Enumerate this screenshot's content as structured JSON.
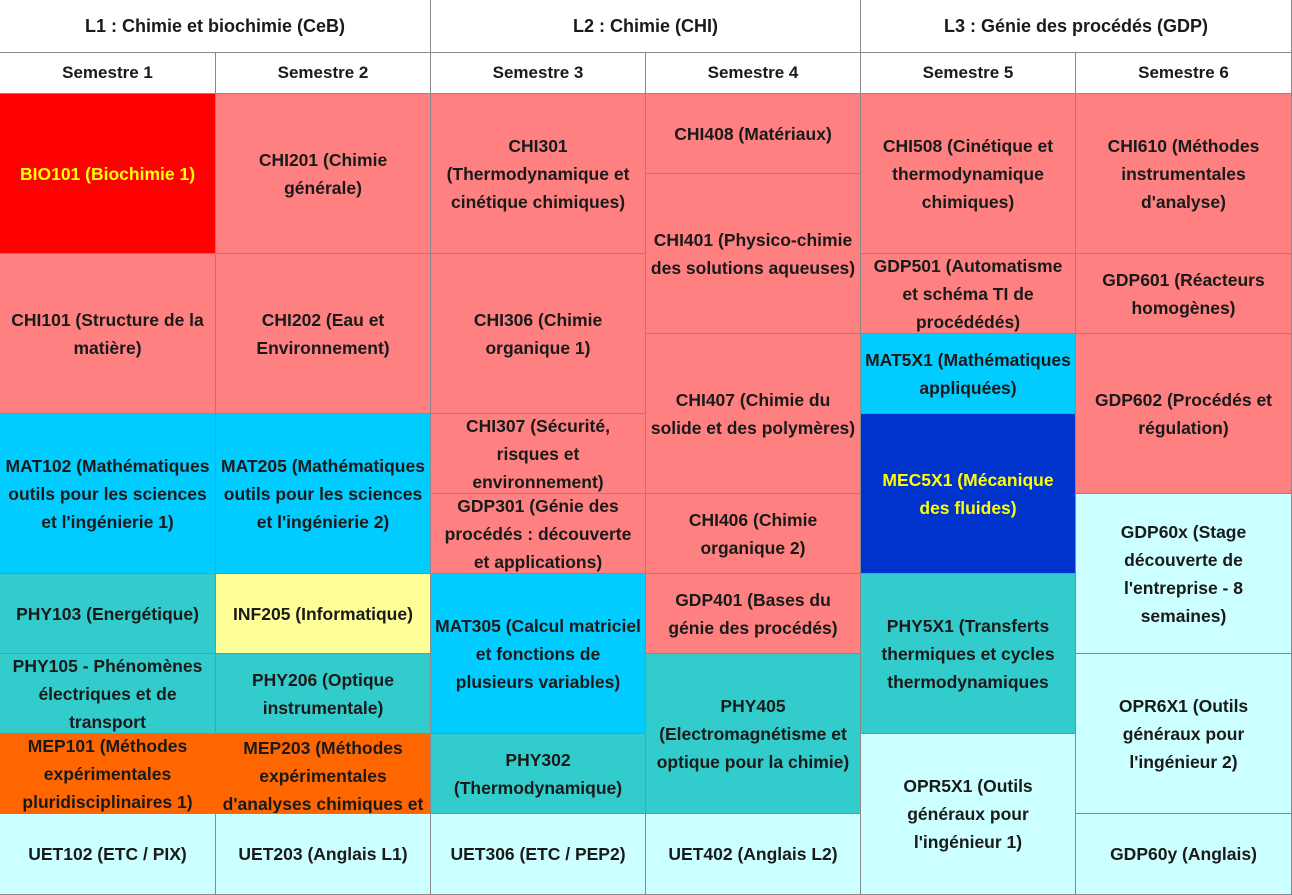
{
  "years": [
    {
      "label": "L1 : Chimie et biochimie (CeB)"
    },
    {
      "label": "L2 : Chimie (CHI)"
    },
    {
      "label": "L3 : Génie des procédés (GDP)"
    }
  ],
  "semesters": [
    "Semestre 1",
    "Semestre 2",
    "Semestre 3",
    "Semestre 4",
    "Semestre 5",
    "Semestre 6"
  ],
  "colors": {
    "red": "#ff0000",
    "salmon": "#ff8080",
    "blue": "#00ccff",
    "teal": "#33cccc",
    "yellow": "#ffff99",
    "orange": "#ff6600",
    "pale_cyan": "#ccffff",
    "navy": "#0033cc",
    "highlight_text": "#ffff00"
  },
  "courses": {
    "s1": [
      {
        "code": "BIO101",
        "text": "BIO101 (Biochimie 1)",
        "color": "red"
      },
      {
        "code": "CHI101",
        "text": "CHI101 (Structure de la matière)",
        "color": "salmon"
      },
      {
        "code": "MAT102",
        "text": "MAT102 (Mathématiques outils pour les sciences et l'ingénierie 1)",
        "color": "blue"
      },
      {
        "code": "PHY103",
        "text": "PHY103 (Energétique)",
        "color": "teal"
      },
      {
        "code": "PHY105",
        "text": "PHY105 - Phénomènes électriques et de transport",
        "color": "teal"
      },
      {
        "code": "MEP101",
        "text": "MEP101 (Méthodes expérimentales pluridisciplinaires 1)",
        "color": "orange"
      },
      {
        "code": "UET102",
        "text": "UET102 (ETC / PIX)",
        "color": "pale_cyan"
      }
    ],
    "s2": [
      {
        "code": "CHI201",
        "text": "CHI201 (Chimie générale)",
        "color": "salmon"
      },
      {
        "code": "CHI202",
        "text": "CHI202 (Eau et Environnement)",
        "color": "salmon"
      },
      {
        "code": "MAT205",
        "text": "MAT205 (Mathématiques  outils pour les sciences et l'ingénierie 2)",
        "color": "blue"
      },
      {
        "code": "INF205",
        "text": "INF205 (Informatique)",
        "color": "yellow"
      },
      {
        "code": "PHY206",
        "text": "PHY206 (Optique instrumentale)",
        "color": "teal"
      },
      {
        "code": "MEP203",
        "text": "MEP203 (Méthodes expérimentales d'analyses chimiques et",
        "color": "orange"
      },
      {
        "code": "UET203",
        "text": "UET203 (Anglais L1)",
        "color": "pale_cyan"
      }
    ],
    "s3": [
      {
        "code": "CHI301",
        "text": "CHI301 (Thermodynamique et cinétique chimiques)",
        "color": "salmon"
      },
      {
        "code": "CHI306",
        "text": "CHI306 (Chimie organique 1)",
        "color": "salmon"
      },
      {
        "code": "CHI307",
        "text": "CHI307 (Sécurité, risques et environnement)",
        "color": "salmon"
      },
      {
        "code": "GDP301",
        "text": "GDP301 (Génie des procédés : découverte et applications)",
        "color": "salmon"
      },
      {
        "code": "MAT305",
        "text": "MAT305 (Calcul matriciel et fonctions de plusieurs variables)",
        "color": "blue"
      },
      {
        "code": "PHY302",
        "text": "PHY302 (Thermodynamique)",
        "color": "teal"
      },
      {
        "code": "UET306",
        "text": "UET306 (ETC / PEP2)",
        "color": "pale_cyan"
      }
    ],
    "s4": [
      {
        "code": "CHI408",
        "text": "CHI408 (Matériaux)",
        "color": "salmon"
      },
      {
        "code": "CHI401",
        "text": "CHI401 (Physico-chimie des solutions aqueuses)",
        "color": "salmon"
      },
      {
        "code": "CHI407",
        "text": "CHI407 (Chimie du solide et des polymères)",
        "color": "salmon"
      },
      {
        "code": "CHI406",
        "text": "CHI406 (Chimie organique 2)",
        "color": "salmon"
      },
      {
        "code": "GDP401",
        "text": "GDP401 (Bases du génie des procédés)",
        "color": "salmon"
      },
      {
        "code": "PHY405",
        "text": "PHY405 (Electromagnétisme et optique pour la chimie)",
        "color": "teal"
      },
      {
        "code": "UET402",
        "text": "UET402 (Anglais L2)",
        "color": "pale_cyan"
      }
    ],
    "s5": [
      {
        "code": "CHI508",
        "text": "CHI508 (Cinétique et thermodynamique chimiques)",
        "color": "salmon"
      },
      {
        "code": "GDP501",
        "text": "GDP501 (Automatisme et schéma TI de procédédés)",
        "color": "salmon"
      },
      {
        "code": "MAT5X1",
        "text": "MAT5X1 (Mathématiques appliquées)",
        "color": "blue"
      },
      {
        "code": "MEC5X1",
        "text": "MEC5X1 (Mécanique des fluides)",
        "color": "navy"
      },
      {
        "code": "PHY5X1",
        "text": "PHY5X1 (Transferts thermiques et cycles thermodynamiques",
        "color": "teal"
      },
      {
        "code": "OPR5X1",
        "text": "OPR5X1 (Outils généraux pour l'ingénieur 1)",
        "color": "pale_cyan"
      }
    ],
    "s6": [
      {
        "code": "CHI610",
        "text": "CHI610 (Méthodes instrumentales d'analyse)",
        "color": "salmon"
      },
      {
        "code": "GDP601",
        "text": "GDP601 (Réacteurs homogènes)",
        "color": "salmon"
      },
      {
        "code": "GDP602",
        "text": "GDP602 (Procédés et régulation)",
        "color": "salmon"
      },
      {
        "code": "GDP60x",
        "text": "GDP60x (Stage découverte de l'entreprise - 8 semaines)",
        "color": "pale_cyan"
      },
      {
        "code": "OPR6X1",
        "text": "OPR6X1 (Outils généraux pour l'ingénieur 2)",
        "color": "pale_cyan"
      },
      {
        "code": "GDP60y",
        "text": "GDP60y (Anglais)",
        "color": "pale_cyan"
      }
    ]
  }
}
